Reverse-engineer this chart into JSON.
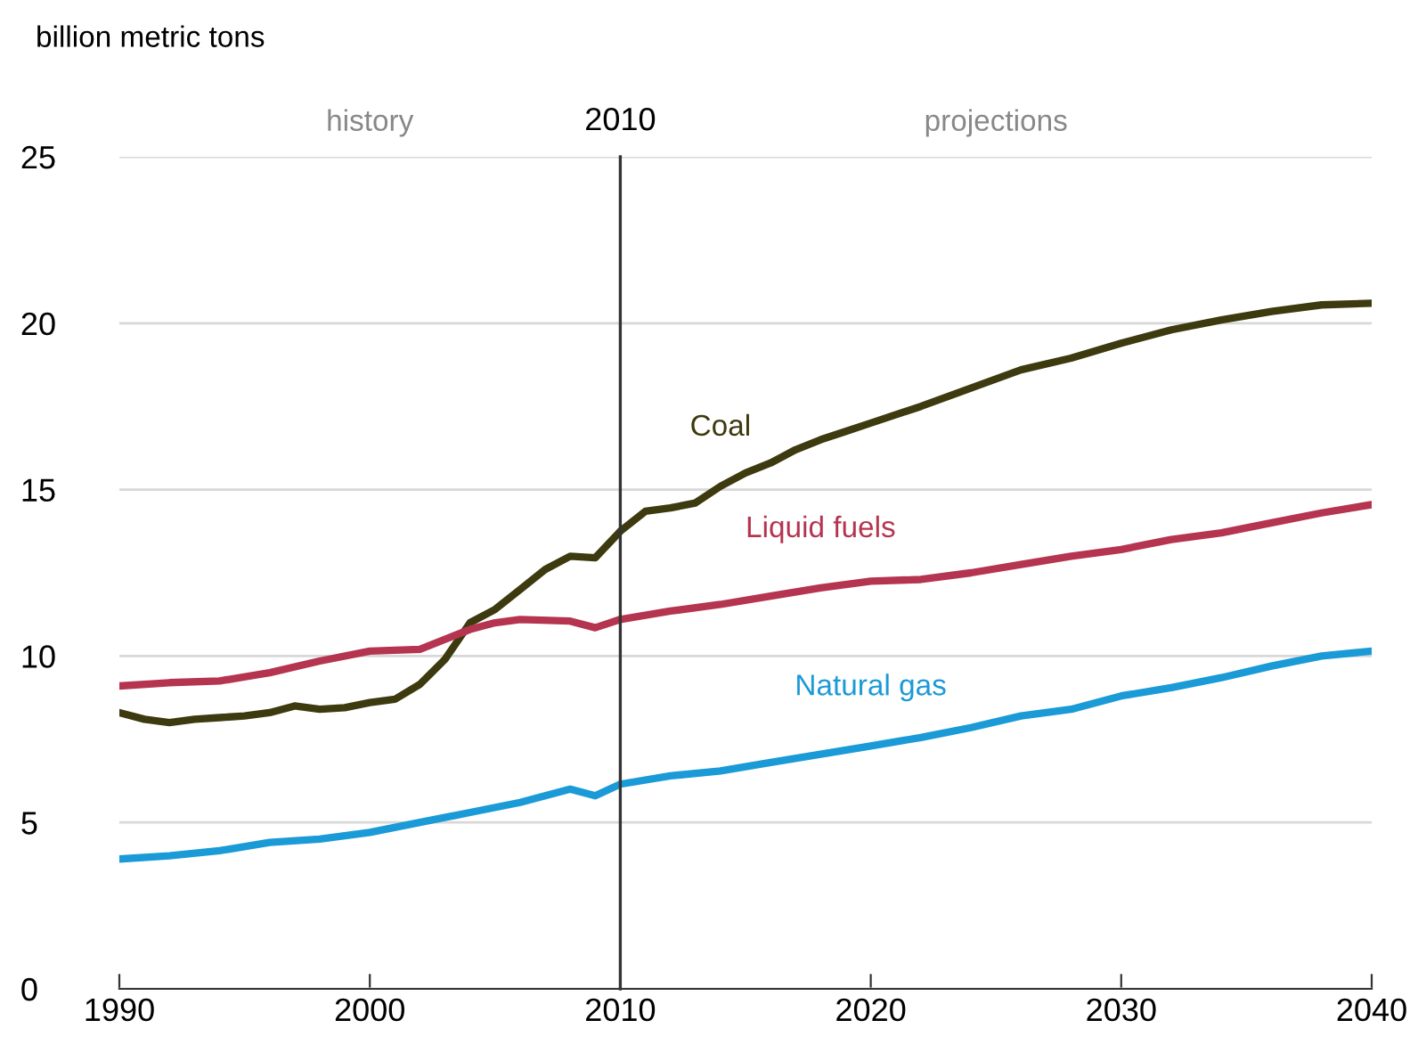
{
  "chart_data": {
    "type": "line",
    "ylabel": "billion metric tons",
    "xlim": [
      1990,
      2040
    ],
    "xticks": [
      1990,
      2000,
      2010,
      2020,
      2030,
      2040
    ],
    "ylim": [
      0,
      25
    ],
    "yticks": [
      0,
      5,
      10,
      15,
      20,
      25
    ],
    "grid": "y",
    "ref_lines": [
      {
        "axis": "x",
        "value": 2010,
        "label": "2010",
        "color": "#333333"
      }
    ],
    "annotations": [
      "history",
      "projections"
    ],
    "series": [
      {
        "name": "Coal",
        "color": "#3d3a0f",
        "x": [
          1990,
          1991,
          1992,
          1993,
          1994,
          1995,
          1996,
          1997,
          1998,
          1999,
          2000,
          2001,
          2002,
          2003,
          2004,
          2005,
          2006,
          2007,
          2008,
          2009,
          2010,
          2011,
          2012,
          2013,
          2014,
          2015,
          2016,
          2017,
          2018,
          2019,
          2020,
          2022,
          2024,
          2026,
          2028,
          2030,
          2032,
          2034,
          2036,
          2038,
          2040
        ],
        "values": [
          8.3,
          8.1,
          8.0,
          8.1,
          8.15,
          8.2,
          8.3,
          8.5,
          8.4,
          8.45,
          8.6,
          8.7,
          9.15,
          9.9,
          11.0,
          11.4,
          12.0,
          12.6,
          13.0,
          12.95,
          13.75,
          14.35,
          14.45,
          14.6,
          15.1,
          15.5,
          15.8,
          16.2,
          16.5,
          16.75,
          17.0,
          17.5,
          18.05,
          18.6,
          18.95,
          19.4,
          19.8,
          20.1,
          20.35,
          20.55,
          20.6
        ]
      },
      {
        "name": "Liquid fuels",
        "color": "#b5344f",
        "x": [
          1990,
          1992,
          1994,
          1996,
          1998,
          2000,
          2002,
          2004,
          2005,
          2006,
          2008,
          2009,
          2010,
          2012,
          2014,
          2016,
          2018,
          2020,
          2022,
          2024,
          2026,
          2028,
          2030,
          2032,
          2034,
          2036,
          2038,
          2040
        ],
        "values": [
          9.1,
          9.2,
          9.25,
          9.5,
          9.85,
          10.15,
          10.2,
          10.8,
          11.0,
          11.1,
          11.05,
          10.85,
          11.1,
          11.35,
          11.55,
          11.8,
          12.05,
          12.25,
          12.3,
          12.5,
          12.75,
          13.0,
          13.2,
          13.5,
          13.7,
          14.0,
          14.3,
          14.55
        ]
      },
      {
        "name": "Natural gas",
        "color": "#1a9ad6",
        "x": [
          1990,
          1992,
          1994,
          1996,
          1998,
          2000,
          2002,
          2004,
          2006,
          2008,
          2009,
          2010,
          2012,
          2014,
          2016,
          2018,
          2020,
          2022,
          2024,
          2026,
          2028,
          2030,
          2032,
          2034,
          2036,
          2038,
          2040
        ],
        "values": [
          3.9,
          4.0,
          4.15,
          4.4,
          4.5,
          4.7,
          5.0,
          5.3,
          5.6,
          6.0,
          5.8,
          6.15,
          6.4,
          6.55,
          6.8,
          7.05,
          7.3,
          7.55,
          7.85,
          8.2,
          8.4,
          8.8,
          9.05,
          9.35,
          9.7,
          10.0,
          10.15
        ]
      }
    ]
  }
}
